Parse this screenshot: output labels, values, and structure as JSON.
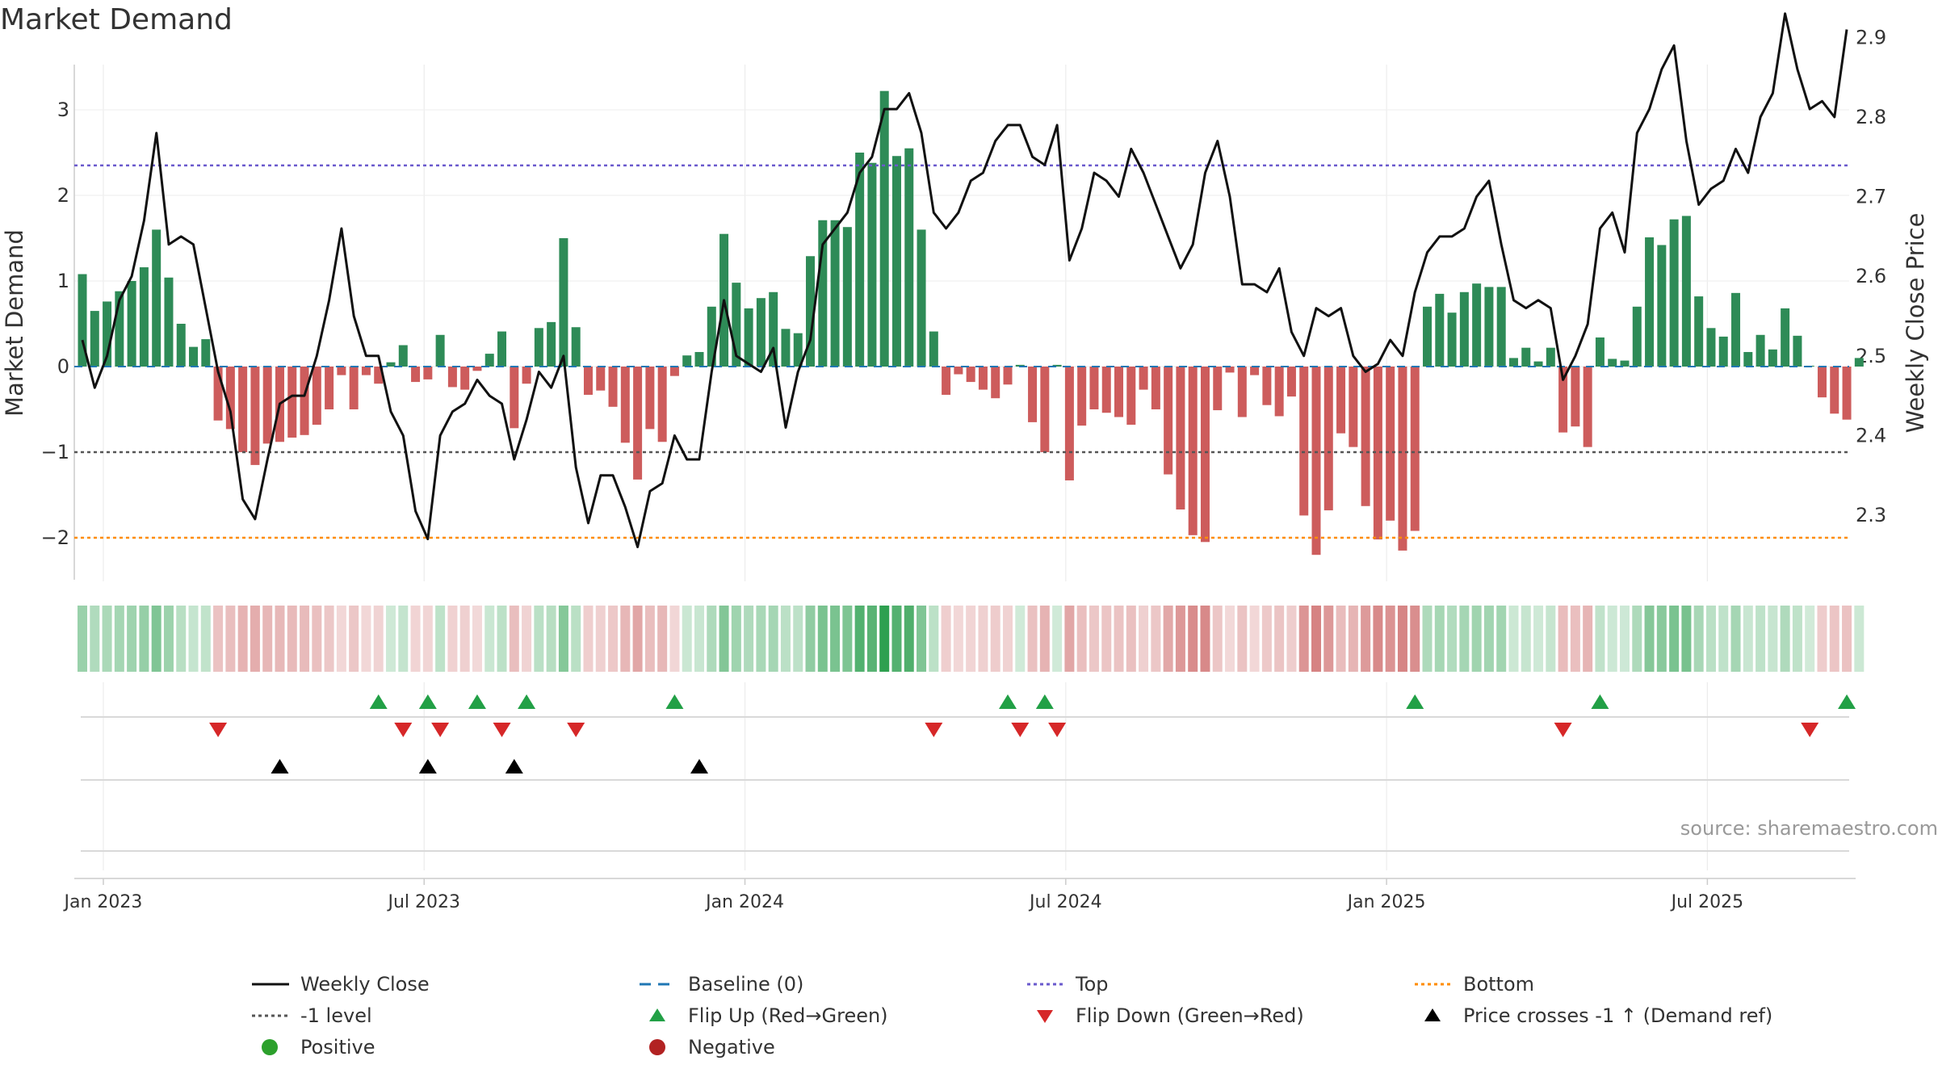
{
  "title": "Market Demand",
  "source": "source: sharemaestro.com",
  "colors": {
    "positive_bar": "#2e8b57",
    "negative_bar": "#cd5c5c",
    "price_line": "#111111",
    "baseline": "#1f77b4",
    "top_line": "#6a5acd",
    "minus1_line": "#555555",
    "bottom_line": "#ff8c00",
    "flip_up": "#22a046",
    "flip_down": "#d62728",
    "cross_marker": "#000000",
    "positive_dot": "#2ca02c",
    "negative_dot": "#b22222"
  },
  "legend": [
    {
      "key": "weekly_close",
      "label": "Weekly Close",
      "symbol": "line-solid",
      "color": "#111111"
    },
    {
      "key": "baseline",
      "label": "Baseline (0)",
      "symbol": "line-dash",
      "color": "#1f77b4"
    },
    {
      "key": "top",
      "label": "Top",
      "symbol": "line-dot",
      "color": "#6a5acd"
    },
    {
      "key": "bottom",
      "label": "Bottom",
      "symbol": "line-dot",
      "color": "#ff8c00"
    },
    {
      "key": "minus1",
      "label": "-1 level",
      "symbol": "line-dot",
      "color": "#555555"
    },
    {
      "key": "flip_up",
      "label": "Flip Up (Red→Green)",
      "symbol": "triangle-up",
      "color": "#22a046"
    },
    {
      "key": "flip_down",
      "label": "Flip Down (Green→Red)",
      "symbol": "triangle-down",
      "color": "#d62728"
    },
    {
      "key": "cross",
      "label": "Price crosses -1 ↑ (Demand ref)",
      "symbol": "triangle-up",
      "color": "#000000"
    },
    {
      "key": "positive",
      "label": "Positive",
      "symbol": "dot",
      "color": "#2ca02c"
    },
    {
      "key": "negative",
      "label": "Negative",
      "symbol": "dot",
      "color": "#b22222"
    }
  ],
  "chart_data": {
    "type": "bar",
    "title": "Market Demand",
    "ylabel": "Market Demand",
    "y2label": "Weekly Close Price",
    "ylim": [
      -2.5,
      3.5
    ],
    "y2lim": [
      2.205,
      2.945
    ],
    "yticks": [
      -2,
      -1,
      0,
      1,
      2,
      3
    ],
    "y2ticks": [
      2.3,
      2.4,
      2.5,
      2.6,
      2.7,
      2.8,
      2.9
    ],
    "levels": {
      "top": 2.35,
      "minus1": -1.0,
      "bottom": -2.0,
      "baseline": 0
    },
    "x_axis": {
      "start_week_index": 0,
      "tick_labels": [
        "Jan 2023",
        "Jul 2023",
        "Jan 2024",
        "Jul 2024",
        "Jan 2025",
        "Jul 2025"
      ],
      "tick_week_positions": [
        1.7,
        27.7,
        53.7,
        79.7,
        105.7,
        131.7
      ]
    },
    "series": [
      {
        "name": "Market Demand",
        "values": [
          1.08,
          0.65,
          0.76,
          0.88,
          1.0,
          1.16,
          1.6,
          1.04,
          0.5,
          0.23,
          0.32,
          -0.63,
          -0.73,
          -1.0,
          -1.15,
          -0.9,
          -0.88,
          -0.83,
          -0.8,
          -0.68,
          -0.5,
          -0.1,
          -0.5,
          -0.1,
          -0.2,
          0.05,
          0.25,
          -0.18,
          -0.15,
          0.37,
          -0.24,
          -0.27,
          -0.05,
          0.15,
          0.41,
          -0.72,
          -0.2,
          0.45,
          0.52,
          1.5,
          0.46,
          -0.33,
          -0.28,
          -0.47,
          -0.89,
          -1.32,
          -0.73,
          -0.88,
          -0.11,
          0.13,
          0.17,
          0.7,
          1.55,
          0.98,
          0.68,
          0.8,
          0.87,
          0.44,
          0.39,
          1.29,
          1.71,
          1.71,
          1.63,
          2.5,
          2.38,
          3.22,
          2.46,
          2.55,
          1.6,
          0.41,
          -0.33,
          -0.09,
          -0.18,
          -0.27,
          -0.37,
          -0.21,
          0.02,
          -0.65,
          -1.0,
          0.02,
          -1.33,
          -0.69,
          -0.5,
          -0.54,
          -0.59,
          -0.68,
          -0.27,
          -0.5,
          -1.26,
          -1.67,
          -1.97,
          -2.05,
          -0.51,
          -0.07,
          -0.59,
          -0.1,
          -0.45,
          -0.58,
          -0.35,
          -1.74,
          -2.2,
          -1.68,
          -0.78,
          -0.94,
          -1.63,
          -2.02,
          -1.8,
          -2.15,
          -1.92,
          0.7,
          0.85,
          0.63,
          0.87,
          0.97,
          0.93,
          0.93,
          0.1,
          0.22,
          0.06,
          0.22,
          -0.77,
          -0.7,
          -0.94,
          0.34,
          0.09,
          0.07,
          0.7,
          1.51,
          1.42,
          1.72,
          1.76,
          0.82,
          0.45,
          0.35,
          0.86,
          0.17,
          0.37,
          0.2,
          0.68,
          0.36,
          0.01,
          -0.36,
          -0.55,
          -0.62,
          0.1
        ]
      },
      {
        "name": "Weekly Close",
        "values": [
          2.52,
          2.46,
          2.5,
          2.57,
          2.6,
          2.67,
          2.78,
          2.64,
          2.65,
          2.64,
          2.56,
          2.48,
          2.43,
          2.32,
          2.295,
          2.37,
          2.44,
          2.45,
          2.45,
          2.5,
          2.57,
          2.66,
          2.55,
          2.5,
          2.5,
          2.43,
          2.4,
          2.305,
          2.27,
          2.4,
          2.43,
          2.44,
          2.47,
          2.45,
          2.44,
          2.37,
          2.42,
          2.48,
          2.46,
          2.5,
          2.36,
          2.29,
          2.35,
          2.35,
          2.31,
          2.26,
          2.33,
          2.34,
          2.4,
          2.37,
          2.37,
          2.48,
          2.57,
          2.5,
          2.49,
          2.48,
          2.51,
          2.41,
          2.48,
          2.52,
          2.64,
          2.66,
          2.68,
          2.73,
          2.75,
          2.81,
          2.81,
          2.83,
          2.78,
          2.68,
          2.66,
          2.68,
          2.72,
          2.73,
          2.77,
          2.79,
          2.79,
          2.75,
          2.74,
          2.79,
          2.62,
          2.66,
          2.73,
          2.72,
          2.7,
          2.76,
          2.73,
          2.69,
          2.65,
          2.61,
          2.64,
          2.73,
          2.77,
          2.7,
          2.59,
          2.59,
          2.58,
          2.61,
          2.53,
          2.5,
          2.56,
          2.55,
          2.56,
          2.5,
          2.48,
          2.49,
          2.52,
          2.5,
          2.58,
          2.63,
          2.65,
          2.65,
          2.66,
          2.7,
          2.72,
          2.64,
          2.57,
          2.56,
          2.57,
          2.56,
          2.47,
          2.5,
          2.54,
          2.66,
          2.68,
          2.63,
          2.78,
          2.81,
          2.86,
          2.89,
          2.77,
          2.69,
          2.71,
          2.72,
          2.76,
          2.73,
          2.8,
          2.83,
          2.93,
          2.86,
          2.81,
          2.82,
          2.8,
          2.91
        ]
      }
    ],
    "flip_up_weeks": [
      24,
      28,
      32,
      36,
      48,
      75,
      78,
      108,
      123,
      143
    ],
    "flip_down_weeks": [
      11,
      26,
      29,
      34,
      40,
      69,
      76,
      79,
      120,
      140
    ],
    "price_cross_weeks": [
      16,
      28,
      35,
      50
    ]
  }
}
